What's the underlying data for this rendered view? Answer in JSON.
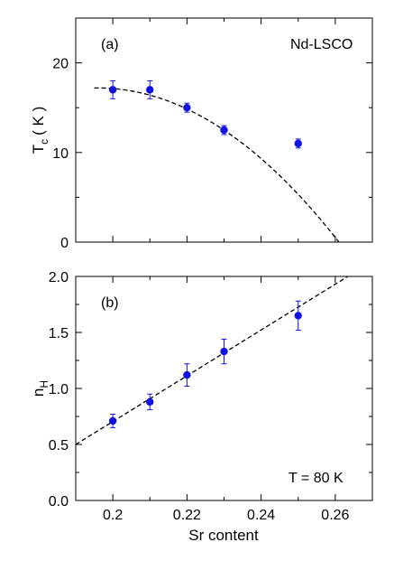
{
  "chart_data": [
    {
      "type": "scatter",
      "panel_label": "(a)",
      "annotation": "Nd-LSCO",
      "ylabel_main": "T",
      "ylabel_sub": "c",
      "ylabel_unit": "( K )",
      "xlim": [
        0.19,
        0.27
      ],
      "ylim": [
        0,
        25
      ],
      "yticks": [
        0,
        10,
        20
      ],
      "xticks": [
        0.2,
        0.22,
        0.24,
        0.26
      ],
      "points": [
        {
          "x": 0.2,
          "y": 17.0,
          "err": 1.0
        },
        {
          "x": 0.21,
          "y": 17.0,
          "err": 1.0
        },
        {
          "x": 0.22,
          "y": 15.0,
          "err": 0.5
        },
        {
          "x": 0.23,
          "y": 12.5,
          "err": 0.5
        },
        {
          "x": 0.25,
          "y": 11.0,
          "err": 0.5
        }
      ],
      "fit_curve": {
        "style": "dashed",
        "form": "quadratic",
        "peak_x": 0.196,
        "peak_y": 17.2,
        "zero_x": 0.261,
        "x_start": 0.195
      }
    },
    {
      "type": "scatter",
      "panel_label": "(b)",
      "annotation": "T = 80 K",
      "ylabel_main": "n",
      "ylabel_sub": "H",
      "xlabel": "Sr content",
      "xlim": [
        0.19,
        0.27
      ],
      "ylim": [
        0.0,
        2.0
      ],
      "yticks": [
        0.0,
        0.5,
        1.0,
        1.5,
        2.0
      ],
      "yticklabels": [
        "0.0",
        "0.5",
        "1.0",
        "1.5",
        "2.0"
      ],
      "xticks": [
        0.2,
        0.22,
        0.24,
        0.26
      ],
      "xticklabels": [
        "0.2",
        "0.22",
        "0.24",
        "0.26"
      ],
      "points": [
        {
          "x": 0.2,
          "y": 0.71,
          "err": 0.06
        },
        {
          "x": 0.21,
          "y": 0.88,
          "err": 0.07
        },
        {
          "x": 0.22,
          "y": 1.12,
          "err": 0.1
        },
        {
          "x": 0.23,
          "y": 1.33,
          "err": 0.11
        },
        {
          "x": 0.25,
          "y": 1.65,
          "err": 0.13
        }
      ],
      "fit_line": {
        "style": "dashed",
        "x0": 0.19,
        "y0": 0.5,
        "x1": 0.2634,
        "y1": 2.0
      }
    }
  ],
  "colors": {
    "marker": "#1010e0",
    "line": "#000000"
  }
}
